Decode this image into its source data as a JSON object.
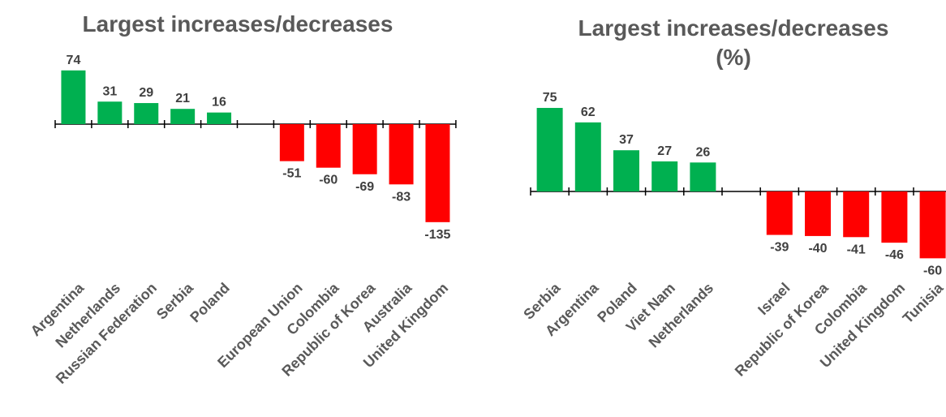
{
  "colors": {
    "positive": "#00b050",
    "negative": "#ff0000",
    "axis": "#000000",
    "title": "#595959",
    "label": "#404040"
  },
  "chart_data": [
    {
      "type": "bar",
      "title": "Largest increases/decreases",
      "categories": [
        "Argentina",
        "Netherlands",
        "Russian Federation",
        "Serbia",
        "Poland",
        "",
        "European Union",
        "Colombia",
        "Republic of Korea",
        "Australia",
        "United Kingdom"
      ],
      "values": [
        74,
        31,
        29,
        21,
        16,
        null,
        -51,
        -60,
        -69,
        -83,
        -135
      ],
      "value_labels": [
        "74",
        "31",
        "29",
        "21",
        "16",
        "",
        "-51",
        "-60",
        "-69",
        "-83",
        "-135"
      ],
      "ylim": [
        -135,
        74
      ],
      "grid": false
    },
    {
      "type": "bar",
      "title": "Largest increases/decreases",
      "title_line2": "(%)",
      "categories": [
        "Serbia",
        "Argentina",
        "Poland",
        "Viet Nam",
        "Netherlands",
        "",
        "Israel",
        "Republic of Korea",
        "Colombia",
        "United Kingdom",
        "Tunisia"
      ],
      "values": [
        75,
        62,
        37,
        27,
        26,
        null,
        -39,
        -40,
        -41,
        -46,
        -60
      ],
      "value_labels": [
        "75",
        "62",
        "37",
        "27",
        "26",
        "",
        "-39",
        "-40",
        "-41",
        "-46",
        "-60"
      ],
      "ylim": [
        -60,
        75
      ],
      "grid": false
    }
  ]
}
